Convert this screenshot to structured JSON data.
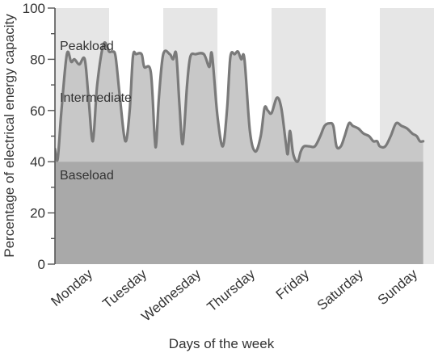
{
  "chart_data": {
    "type": "area",
    "title": "",
    "xlabel": "Days of the week",
    "ylabel": "Percentage of electrical energy capacity",
    "ylim": [
      0,
      100
    ],
    "yticks": [
      0,
      20,
      40,
      60,
      80,
      100
    ],
    "categories": [
      "Monday",
      "Tuesday",
      "Wednesday",
      "Thursday",
      "Friday",
      "Saturday",
      "Sunday"
    ],
    "annotations": [
      "Peakload",
      "Intermediate",
      "Baseload"
    ],
    "series": [
      {
        "x": [
          0.0,
          0.05,
          0.12,
          0.22,
          0.3,
          0.36,
          0.45,
          0.55,
          0.62,
          0.7,
          0.78,
          0.9,
          1.0,
          1.06,
          1.12,
          1.2,
          1.3,
          1.38,
          1.44,
          1.5,
          1.6,
          1.65,
          1.77,
          1.84,
          1.87,
          1.92,
          2.0,
          2.12,
          2.18,
          2.24,
          2.3,
          2.36,
          2.44,
          2.5,
          2.6,
          2.75,
          2.85,
          2.9,
          3.0,
          3.1,
          3.18,
          3.24,
          3.32,
          3.38,
          3.44,
          3.5,
          3.6,
          3.7,
          3.8,
          3.87,
          3.93,
          4.0,
          4.1,
          4.18,
          4.26,
          4.3,
          4.34,
          4.4,
          4.48,
          4.54,
          4.6,
          4.7,
          4.8,
          4.9,
          4.98,
          5.07,
          5.14,
          5.2,
          5.28,
          5.35,
          5.43,
          5.5,
          5.6,
          5.7,
          5.8,
          5.88,
          5.95,
          6.0,
          6.1,
          6.2,
          6.3,
          6.4,
          6.5,
          6.6,
          6.68,
          6.74,
          6.8
        ],
        "values": [
          45,
          41,
          60,
          82,
          79,
          80,
          78,
          80,
          65,
          48,
          70,
          86,
          83,
          83,
          81,
          65,
          48,
          60,
          81,
          82,
          82,
          77,
          75,
          50,
          47,
          65,
          82,
          82,
          80,
          82,
          62,
          47,
          70,
          81,
          82,
          82,
          77,
          82,
          58,
          46,
          61,
          81,
          82,
          83,
          80,
          80,
          52,
          44,
          50,
          61,
          60,
          59,
          65,
          61,
          48,
          43,
          52,
          43,
          40,
          44,
          46,
          46,
          46,
          50,
          54,
          55,
          54,
          46,
          46,
          50,
          55,
          54,
          53,
          51,
          50,
          48,
          48,
          46,
          46,
          50,
          55,
          54,
          53,
          51,
          50,
          48,
          48
        ]
      }
    ]
  }
}
